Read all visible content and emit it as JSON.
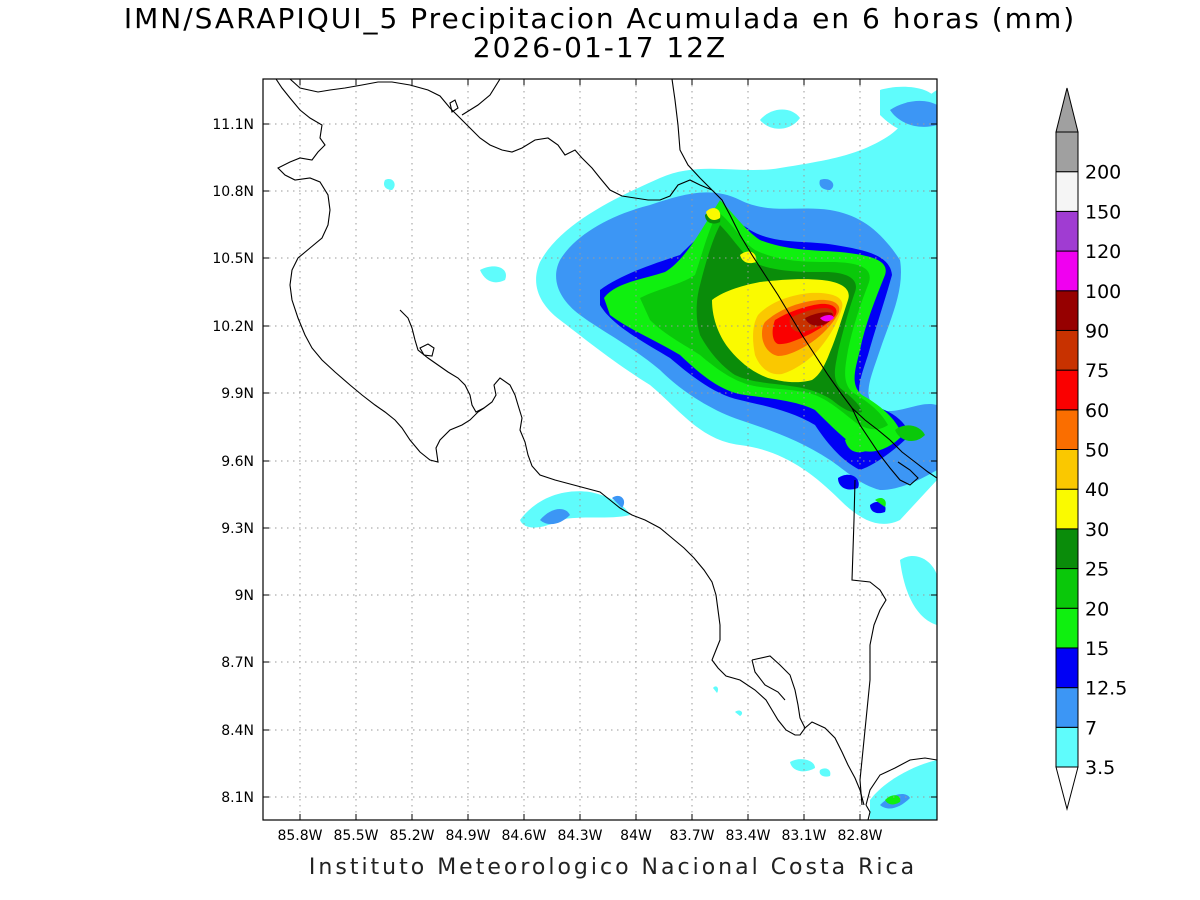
{
  "header": {
    "title": "IMN/SARAPIQUI_5 Precipitacion Acumulada en 6 horas (mm)",
    "subtitle": "2026-01-17 12Z"
  },
  "footer": {
    "text": "Instituto Meteorologico Nacional Costa Rica"
  },
  "axes": {
    "lon_ticks": [
      "85.8W",
      "85.5W",
      "85.2W",
      "84.9W",
      "84.6W",
      "84.3W",
      "84W",
      "83.7W",
      "83.4W",
      "83.1W",
      "82.8W"
    ],
    "lat_ticks": [
      "11.1N",
      "10.8N",
      "10.5N",
      "10.2N",
      "9.9N",
      "9.6N",
      "9.3N",
      "9N",
      "8.7N",
      "8.4N",
      "8.1N"
    ],
    "grid": true
  },
  "colorbar": {
    "labels": [
      "3.5",
      "7",
      "12.5",
      "15",
      "20",
      "25",
      "30",
      "40",
      "50",
      "60",
      "75",
      "90",
      "100",
      "120",
      "150",
      "200"
    ],
    "colors": [
      "#5ffcfc",
      "#3c96f5",
      "#0000f5",
      "#0ff00f",
      "#0ac80a",
      "#0a8c0a",
      "#fafa00",
      "#fac800",
      "#fa6e00",
      "#fa0000",
      "#c83200",
      "#960000",
      "#f000f0",
      "#a03cd2",
      "#f5f5f5",
      "#a0a0a0"
    ]
  }
}
